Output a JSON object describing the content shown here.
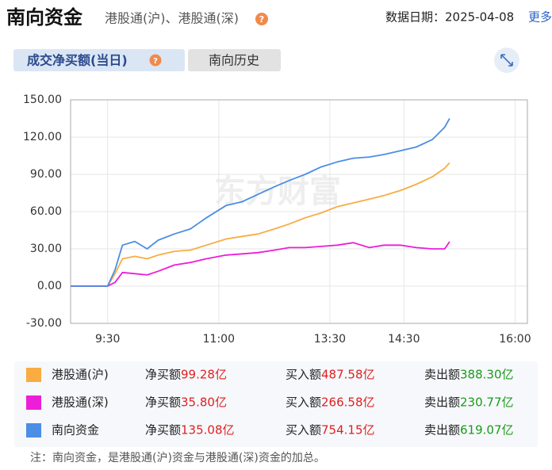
{
  "header": {
    "title": "南向资金",
    "subtitle": "港股通(沪)、港股通(深)",
    "help_icon": "?",
    "date": "数据日期：2025-04-08",
    "more": "更多"
  },
  "tabs": [
    {
      "label": "成交净买额(当日)",
      "help_icon": "?"
    },
    {
      "label": "南向历史"
    }
  ],
  "chart_data": {
    "type": "line",
    "watermark": "东方财富",
    "x": [
      "9:00",
      "9:30",
      "9:36",
      "9:42",
      "9:52",
      "10:02",
      "10:11",
      "10:24",
      "10:37",
      "10:50",
      "11:06",
      "11:19",
      "11:32",
      "11:45",
      "11:57",
      "13:10",
      "13:23",
      "13:36",
      "13:49",
      "14:02",
      "14:14",
      "14:27",
      "14:40",
      "14:53",
      "15:03",
      "15:07"
    ],
    "xlim": [
      "9:00",
      "16:10"
    ],
    "xticks": [
      "9:30",
      "11:00",
      "13:30",
      "14:30",
      "16:00"
    ],
    "ylim": [
      -30,
      150
    ],
    "yticks": [
      {
        "value": -30,
        "label": "-30.00"
      },
      {
        "value": 0,
        "label": "0.00"
      },
      {
        "value": 30,
        "label": "30.00"
      },
      {
        "value": 60,
        "label": "60.00"
      },
      {
        "value": 90,
        "label": "90.00"
      },
      {
        "value": 120,
        "label": "120.00"
      },
      {
        "value": 150,
        "label": "150.00"
      }
    ],
    "grid": true,
    "summary_labels": {
      "net": "净买额",
      "buy": "买入额",
      "sell": "卖出额"
    },
    "series": [
      {
        "name": "港股通(沪)",
        "color": "#f8ac42",
        "net": "99.28亿",
        "buy": "487.58亿",
        "sell": "388.30亿",
        "values": [
          0,
          0,
          10,
          22,
          24,
          22,
          25,
          28,
          29,
          33,
          38,
          40,
          42,
          46,
          50,
          55,
          59,
          64,
          67,
          70,
          73,
          77,
          82,
          88,
          95,
          99.28
        ]
      },
      {
        "name": "港股通(深)",
        "color": "#ec1ed8",
        "net": "35.80亿",
        "buy": "266.58亿",
        "sell": "230.77亿",
        "values": [
          0,
          0,
          3,
          11,
          10,
          9,
          12,
          17,
          19,
          22,
          25,
          26,
          27,
          29,
          31,
          31,
          32,
          33,
          35,
          31,
          33,
          33,
          31,
          30,
          30,
          35.8
        ]
      },
      {
        "name": "南向资金",
        "color": "#4a8ee6",
        "net": "135.08亿",
        "buy": "754.15亿",
        "sell": "619.07亿",
        "values": [
          0,
          0,
          13,
          33,
          36,
          30,
          37,
          42,
          46,
          55,
          65,
          68,
          74,
          80,
          85,
          90,
          96,
          100,
          103,
          104,
          106,
          109,
          112,
          118,
          128,
          135.08
        ]
      }
    ],
    "note": "注：南向资金，是港股通(沪)资金与港股通(深)资金的加总。"
  }
}
